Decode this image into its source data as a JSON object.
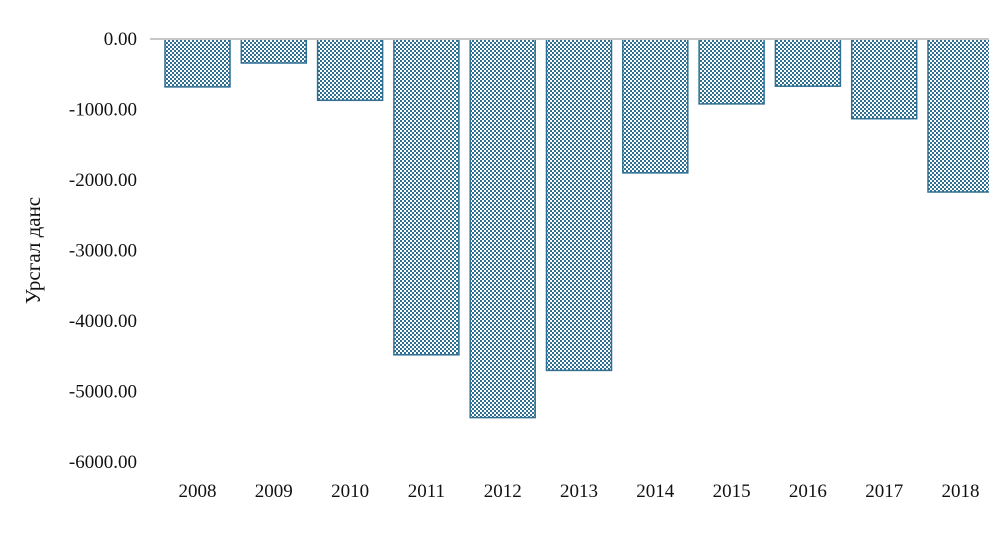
{
  "chart_data": {
    "type": "bar",
    "title": "",
    "xlabel": "",
    "ylabel": "Урсгал данс",
    "categories": [
      "2008",
      "2009",
      "2010",
      "2011",
      "2012",
      "2013",
      "2014",
      "2015",
      "2016",
      "2017",
      "2018"
    ],
    "values": [
      -680,
      -340,
      -870,
      -4480,
      -5370,
      -4700,
      -1900,
      -920,
      -670,
      -1130,
      -2170
    ],
    "ylim": [
      -6000,
      0
    ],
    "y_ticks": [
      0,
      -1000,
      -2000,
      -3000,
      -4000,
      -5000,
      -6000
    ],
    "y_tick_labels": [
      "0.00",
      "-1000.00",
      "-2000.00",
      "-3000.00",
      "-4000.00",
      "-5000.00",
      "-6000.00"
    ],
    "grid": false,
    "legend": "none",
    "bar_color": "#2f6f92",
    "bar_pattern": "checkered"
  }
}
